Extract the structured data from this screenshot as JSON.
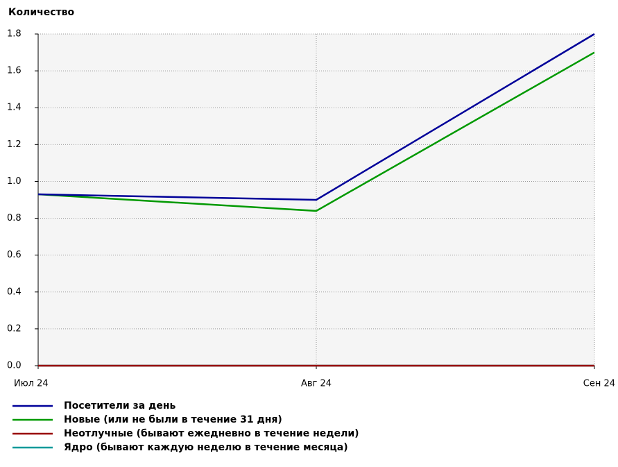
{
  "chart_data": {
    "type": "line",
    "y_label": "Количество",
    "categories": [
      "Июл 24",
      "Авг 24",
      "Сен 24"
    ],
    "series": [
      {
        "name": "Посетители за день",
        "color": "#000099",
        "values": [
          0.93,
          0.9,
          1.8
        ]
      },
      {
        "name": "Новые (или не были в течение 31 дня)",
        "color": "#009900",
        "values": [
          0.93,
          0.84,
          1.7
        ]
      },
      {
        "name": "Неотлучные (бывают ежедневно в течение недели)",
        "color": "#990000",
        "values": [
          0,
          0,
          0
        ]
      },
      {
        "name": "Ядро (бывают каждую неделю в течение месяца)",
        "color": "#009999",
        "values": [
          0,
          0,
          0
        ]
      }
    ],
    "ylim": [
      0,
      1.8
    ],
    "yticks": [
      {
        "value": 0,
        "label": "0.0"
      },
      0.2,
      0.4,
      0.6,
      0.8,
      {
        "value": 1,
        "label": "1.0"
      },
      1.2,
      1.4,
      1.6,
      1.8
    ],
    "grid": true
  }
}
